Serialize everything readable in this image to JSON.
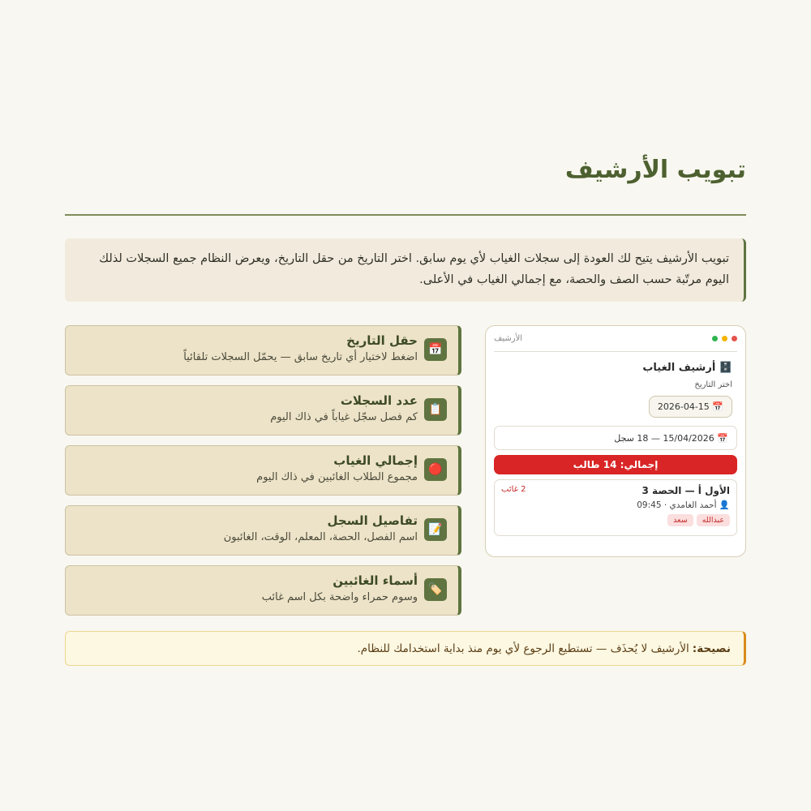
{
  "title": "تبويب الأرشيف",
  "intro": "تبويب الأرشيف يتيح لك العودة إلى سجلات الغياب لأي يوم سابق. اختر التاريخ من حقل التاريخ، ويعرض النظام جميع السجلات لذلك اليوم مرتّبة حسب الصف والحصة، مع إجمالي الغياب في الأعلى.",
  "features": [
    {
      "icon": "📅",
      "icon_name": "calendar-icon",
      "title": "حقل التاريخ",
      "desc": "اضغط لاختيار أي تاريخ سابق — يحمّل السجلات تلقائياً"
    },
    {
      "icon": "📋",
      "icon_name": "clipboard-icon",
      "title": "عدد السجلات",
      "desc": "كم فصل سجّل غياباً في ذاك اليوم"
    },
    {
      "icon": "🔴",
      "icon_name": "red-circle-icon",
      "title": "إجمالي الغياب",
      "desc": "مجموع الطلاب الغائبين في ذاك اليوم"
    },
    {
      "icon": "📝",
      "icon_name": "memo-icon",
      "title": "تفاصيل السجل",
      "desc": "اسم الفصل، الحصة، المعلم، الوقت، الغائبون"
    },
    {
      "icon": "🏷️",
      "icon_name": "tag-icon",
      "title": "أسماء الغائبين",
      "desc": "وسوم حمراء واضحة بكل اسم غائب"
    }
  ],
  "phone": {
    "window_title": "الأرشيف",
    "heading": "🗄️ أرشيف الغياب",
    "date_label": "اختر التاريخ",
    "date_value": "📅 2026-04-15",
    "summary": "📅 15/04/2026 — 18 سجل",
    "total": "إجمالي: 14 طالب",
    "record": {
      "title": "الأول أ — الحصة 3",
      "count": "2 غائب",
      "teacher": "👤 أحمد الغامدي · 09:45",
      "absentees": [
        "عبدالله",
        "سعد"
      ]
    }
  },
  "tip": {
    "label": "نصيحة:",
    "text": "الأرشيف لا يُحذَف — تستطيع الرجوع لأي يوم منذ بداية استخدامك للنظام."
  },
  "colors": {
    "accent": "#5f7440",
    "danger": "#d92525",
    "tip_border": "#d98b1c"
  }
}
